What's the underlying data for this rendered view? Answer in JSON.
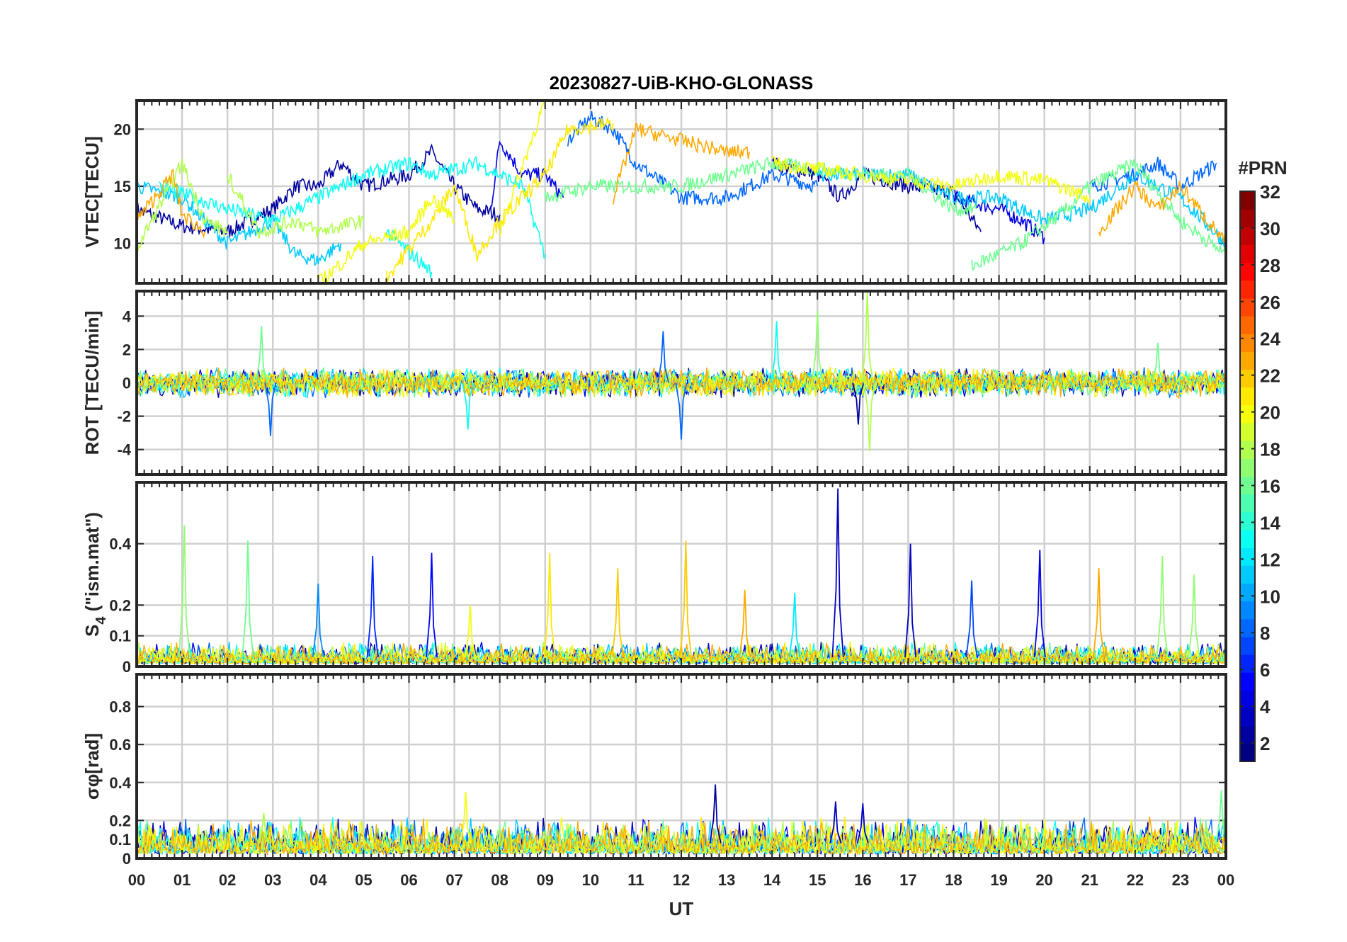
{
  "chart_data": {
    "type": "line",
    "title": "20230827-UiB-KHO-GLONASS",
    "xlabel": "UT",
    "xlim": [
      0,
      24
    ],
    "xtick_labels": [
      "00",
      "01",
      "02",
      "03",
      "04",
      "05",
      "06",
      "07",
      "08",
      "09",
      "10",
      "11",
      "12",
      "13",
      "14",
      "15",
      "16",
      "17",
      "18",
      "19",
      "20",
      "21",
      "22",
      "23",
      "00"
    ],
    "colorbar": {
      "label": "#PRN",
      "range": [
        1,
        32
      ],
      "tick_labels": [
        "2",
        "4",
        "6",
        "8",
        "10",
        "12",
        "14",
        "16",
        "18",
        "20",
        "22",
        "24",
        "26",
        "28",
        "30",
        "32"
      ],
      "colormap": "jet"
    },
    "panels": [
      {
        "id": "vtec",
        "ylabel": "VTEC[TECU]",
        "ylim": [
          6.5,
          22.5
        ],
        "yticks": [
          10,
          15,
          20
        ],
        "ytick_labels": [
          "10",
          "15",
          "20"
        ],
        "series": [
          {
            "prn": 2,
            "segments": [
              [
                [
                  0,
                  13
                ],
                [
                  1,
                  11.5
                ],
                [
                  2,
                  11
                ],
                [
                  3,
                  13
                ],
                [
                  3.5,
                  15
                ],
                [
                  4,
                  15
                ],
                [
                  4.5,
                  17
                ],
                [
                  5,
                  15
                ],
                [
                  6,
                  16
                ],
                [
                  6.5,
                  18
                ],
                [
                  7,
                  15
                ],
                [
                  7.5,
                  13
                ],
                [
                  8,
                  12.5
                ]
              ],
              [
                [
                  14,
                  17
                ],
                [
                  15,
                  16
                ],
                [
                  15.5,
                  14
                ],
                [
                  16,
                  16
                ],
                [
                  17,
                  15
                ],
                [
                  18,
                  14.5
                ],
                [
                  18.6,
                  11
                ]
              ]
            ]
          },
          {
            "prn": 4,
            "segments": [
              [
                [
                  7.8,
                  13
                ],
                [
                  8,
                  19
                ],
                [
                  8.5,
                  16
                ],
                [
                  9,
                  16
                ],
                [
                  9.4,
                  14
                ]
              ],
              [
                [
                  18,
                  14
                ],
                [
                  19,
                  13
                ],
                [
                  19.5,
                  12
                ],
                [
                  20,
                  10.5
                ]
              ]
            ]
          },
          {
            "prn": 8,
            "segments": [
              [
                [
                  9.5,
                  19
                ],
                [
                  10,
                  21
                ],
                [
                  10.5,
                  20
                ],
                [
                  11,
                  17
                ],
                [
                  12,
                  14
                ],
                [
                  13,
                  14
                ],
                [
                  14,
                  16
                ],
                [
                  15,
                  15
                ]
              ],
              [
                [
                  21,
                  15
                ],
                [
                  22,
                  16
                ],
                [
                  22.5,
                  17
                ],
                [
                  23,
                  15
                ],
                [
                  23.8,
                  17
                ]
              ]
            ]
          },
          {
            "prn": 11,
            "segments": [
              [
                [
                  0,
                  15
                ],
                [
                  1,
                  14
                ],
                [
                  2,
                  10
                ],
                [
                  3,
                  12
                ],
                [
                  3.5,
                  9
                ],
                [
                  4,
                  8.5
                ],
                [
                  4.5,
                  10
                ]
              ],
              [
                [
                  15,
                  16
                ],
                [
                  17,
                  16
                ],
                [
                  18,
                  14
                ],
                [
                  19,
                  14
                ],
                [
                  20,
                  12
                ],
                [
                  21,
                  13
                ],
                [
                  22,
                  16
                ],
                [
                  23,
                  14
                ],
                [
                  24,
                  10
                ]
              ]
            ]
          },
          {
            "prn": 13,
            "segments": [
              [
                [
                  0.5,
                  15
                ],
                [
                  2,
                  13
                ],
                [
                  3,
                  12
                ],
                [
                  4,
                  14
                ],
                [
                  5,
                  16
                ],
                [
                  6,
                  17
                ],
                [
                  6.5,
                  16
                ],
                [
                  7.5,
                  17
                ],
                [
                  8.5,
                  15
                ],
                [
                  9,
                  9
                ]
              ],
              [
                [
                  5.5,
                  11
                ],
                [
                  6.5,
                  7.5
                ]
              ]
            ]
          },
          {
            "prn": 16,
            "segments": [
              [
                [
                  9,
                  14
                ],
                [
                  10,
                  15
                ],
                [
                  12,
                  15
                ],
                [
                  14,
                  17
                ],
                [
                  16,
                  16
                ],
                [
                  17,
                  16
                ],
                [
                  18,
                  13
                ],
                [
                  18.5,
                  13
                ]
              ],
              [
                [
                  18.4,
                  8
                ],
                [
                  19.5,
                  10
                ],
                [
                  20.5,
                  13
                ],
                [
                  21,
                  15
                ],
                [
                  22,
                  17
                ],
                [
                  23,
                  12
                ],
                [
                  24,
                  9
                ]
              ]
            ]
          },
          {
            "prn": 18,
            "segments": [
              [
                [
                  2,
                  16
                ],
                [
                  2.7,
                  11
                ],
                [
                  3.5,
                  12
                ],
                [
                  4,
                  11
                ],
                [
                  5,
                  12
                ]
              ],
              [
                [
                  0,
                  9.5
                ],
                [
                  1,
                  17
                ],
                [
                  1.5,
                  12
                ],
                [
                  2,
                  11
                ]
              ]
            ]
          },
          {
            "prn": 20,
            "segments": [
              [
                [
                  4,
                  6.5
                ],
                [
                  5,
                  10
                ],
                [
                  6,
                  11
                ],
                [
                  6.5,
                  14
                ],
                [
                  7,
                  12
                ]
              ],
              [
                [
                  8,
                  11
                ],
                [
                  9,
                  22.5
                ]
              ],
              [
                [
                  14,
                  17
                ],
                [
                  16,
                  16
                ],
                [
                  18,
                  15
                ],
                [
                  19,
                  16
                ],
                [
                  20,
                  15.5
                ],
                [
                  21,
                  14
                ]
              ]
            ]
          },
          {
            "prn": 21,
            "segments": [
              [
                [
                  5.5,
                  7
                ],
                [
                  6.5,
                  12
                ],
                [
                  7,
                  15
                ],
                [
                  7.5,
                  9
                ],
                [
                  8,
                  12
                ],
                [
                  9,
                  16
                ],
                [
                  9.5,
                  20
                ],
                [
                  10.5,
                  20.5
                ]
              ]
            ]
          },
          {
            "prn": 23,
            "segments": [
              [
                [
                  0,
                  12
                ],
                [
                  0.8,
                  16
                ],
                [
                  1,
                  12.5
                ],
                [
                  1.5,
                  11
                ]
              ],
              [
                [
                  10.5,
                  14
                ],
                [
                  11,
                  20
                ],
                [
                  12,
                  19
                ],
                [
                  13,
                  18
                ],
                [
                  13.5,
                  18
                ]
              ],
              [
                [
                  21.2,
                  11
                ],
                [
                  22,
                  15
                ],
                [
                  22.5,
                  13
                ],
                [
                  23,
                  15
                ],
                [
                  24,
                  10
                ]
              ]
            ]
          }
        ]
      },
      {
        "id": "rot",
        "ylabel": "ROT [TECU/min]",
        "ylim": [
          -5.5,
          5.5
        ],
        "yticks": [
          -4,
          -2,
          0,
          2,
          4
        ],
        "ytick_labels": [
          "-4",
          "-2",
          "0",
          "2",
          "4"
        ],
        "series_prns": [
          2,
          4,
          8,
          11,
          13,
          16,
          18,
          20,
          21,
          23
        ],
        "typical_amplitude": 0.6,
        "spikes": [
          {
            "t": 2.75,
            "v": 3.4,
            "prn": 16
          },
          {
            "t": 2.95,
            "v": -3.2,
            "prn": 8
          },
          {
            "t": 7.3,
            "v": -2.8,
            "prn": 13
          },
          {
            "t": 11.6,
            "v": 3.1,
            "prn": 8
          },
          {
            "t": 12.0,
            "v": -3.4,
            "prn": 8
          },
          {
            "t": 14.1,
            "v": 3.7,
            "prn": 13
          },
          {
            "t": 15.0,
            "v": 4.3,
            "prn": 17
          },
          {
            "t": 15.9,
            "v": -2.5,
            "prn": 2
          },
          {
            "t": 16.1,
            "v": 5.5,
            "prn": 18
          },
          {
            "t": 16.15,
            "v": -4.1,
            "prn": 18
          },
          {
            "t": 22.5,
            "v": 2.4,
            "prn": 16
          }
        ]
      },
      {
        "id": "s4",
        "ylabel": "S4 (\"ism.mat\")",
        "ylabel_main": "S",
        "ylabel_sub": "4",
        "ylabel_rest": "  (\"ism.mat\")",
        "ylim": [
          0,
          0.6
        ],
        "yticks": [
          0,
          0.1,
          0.2,
          0.4
        ],
        "ytick_labels": [
          "0",
          "0.1",
          "0.2",
          "0.4"
        ],
        "series_prns": [
          2,
          4,
          8,
          11,
          13,
          16,
          18,
          20,
          21,
          23
        ],
        "typical_level": 0.03,
        "spikes": [
          {
            "t": 1.05,
            "v": 0.46,
            "prn": 17
          },
          {
            "t": 2.45,
            "v": 0.41,
            "prn": 16
          },
          {
            "t": 4.0,
            "v": 0.27,
            "prn": 9
          },
          {
            "t": 5.2,
            "v": 0.36,
            "prn": 6
          },
          {
            "t": 6.5,
            "v": 0.37,
            "prn": 5
          },
          {
            "t": 7.35,
            "v": 0.2,
            "prn": 20
          },
          {
            "t": 9.1,
            "v": 0.37,
            "prn": 21
          },
          {
            "t": 10.6,
            "v": 0.32,
            "prn": 22
          },
          {
            "t": 12.1,
            "v": 0.41,
            "prn": 22
          },
          {
            "t": 13.4,
            "v": 0.25,
            "prn": 23
          },
          {
            "t": 14.5,
            "v": 0.24,
            "prn": 12
          },
          {
            "t": 15.45,
            "v": 0.58,
            "prn": 3
          },
          {
            "t": 17.05,
            "v": 0.4,
            "prn": 3
          },
          {
            "t": 18.4,
            "v": 0.28,
            "prn": 7
          },
          {
            "t": 19.9,
            "v": 0.38,
            "prn": 4
          },
          {
            "t": 21.2,
            "v": 0.32,
            "prn": 23
          },
          {
            "t": 22.6,
            "v": 0.36,
            "prn": 17
          },
          {
            "t": 23.3,
            "v": 0.3,
            "prn": 17
          }
        ]
      },
      {
        "id": "sigma",
        "ylabel": "σφ[rad]",
        "ylabel_main": "σ",
        "ylabel_sub": "φ",
        "ylabel_rest": "[rad]",
        "ylim": [
          0,
          0.97
        ],
        "yticks": [
          0,
          0.1,
          0.2,
          0.4,
          0.6,
          0.8
        ],
        "ytick_labels": [
          "0",
          "0.1",
          "0.2",
          "0.4",
          "0.6",
          "0.8"
        ],
        "series_prns": [
          2,
          4,
          8,
          11,
          13,
          16,
          18,
          20,
          21,
          23
        ],
        "typical_level": 0.08,
        "spikes": [
          {
            "t": 2.8,
            "v": 0.24,
            "prn": 18
          },
          {
            "t": 7.25,
            "v": 0.35,
            "prn": 20
          },
          {
            "t": 12.75,
            "v": 0.39,
            "prn": 2
          },
          {
            "t": 15.4,
            "v": 0.3,
            "prn": 3
          },
          {
            "t": 16,
            "v": 0.29,
            "prn": 3
          },
          {
            "t": 23.9,
            "v": 0.36,
            "prn": 16
          }
        ]
      }
    ]
  }
}
